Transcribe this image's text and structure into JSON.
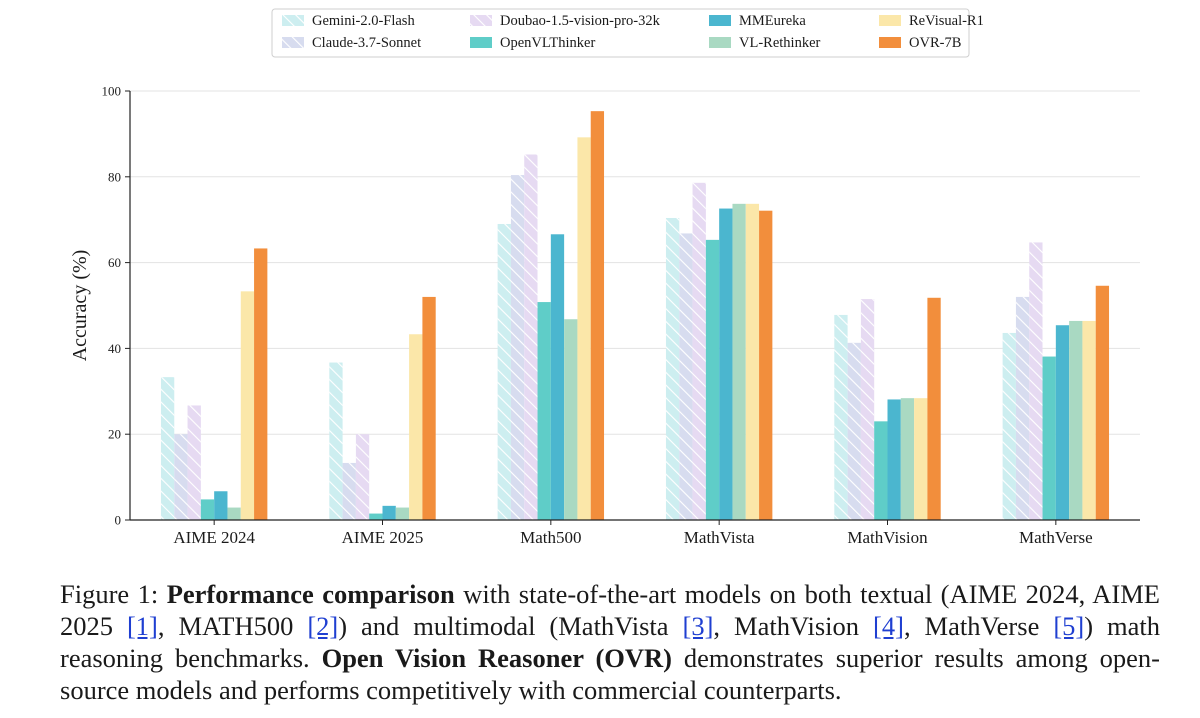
{
  "chart_data": {
    "type": "bar",
    "title": "",
    "xlabel": "",
    "ylabel": "Accuracy (%)",
    "ylim": [
      0,
      100
    ],
    "yticks": [
      0,
      20,
      40,
      60,
      80,
      100
    ],
    "grid": true,
    "legend_position": "top",
    "categories": [
      "AIME 2024",
      "AIME 2025",
      "Math500",
      "MathVista",
      "MathVision",
      "MathVerse"
    ],
    "series": [
      {
        "name": "Gemini-2.0-Flash",
        "color": "#cdeef0",
        "hatch": true,
        "values": [
          33.3,
          36.7,
          69.0,
          70.4,
          47.8,
          43.6
        ]
      },
      {
        "name": "Claude-3.7-Sonnet",
        "color": "#d7dcef",
        "hatch": true,
        "values": [
          20.0,
          13.3,
          80.4,
          66.8,
          41.3,
          52.0
        ]
      },
      {
        "name": "Doubao-1.5-vision-pro-32k",
        "color": "#e6daf2",
        "hatch": true,
        "values": [
          26.7,
          20.0,
          85.2,
          78.6,
          51.5,
          64.7
        ]
      },
      {
        "name": "OpenVLThinker",
        "color": "#5fcdc8",
        "hatch": false,
        "values": [
          4.8,
          1.5,
          50.8,
          65.3,
          23.0,
          38.1
        ]
      },
      {
        "name": "MMEureka",
        "color": "#4bb6cf",
        "hatch": false,
        "values": [
          6.7,
          3.3,
          66.6,
          72.6,
          28.1,
          45.4
        ]
      },
      {
        "name": "VL-Rethinker",
        "color": "#a9d9c2",
        "hatch": false,
        "values": [
          2.9,
          2.9,
          46.8,
          73.7,
          28.4,
          46.4
        ]
      },
      {
        "name": "ReVisual-R1",
        "color": "#fbe7a9",
        "hatch": false,
        "values": [
          53.3,
          43.3,
          89.2,
          73.7,
          28.4,
          46.4
        ]
      },
      {
        "name": "OVR-7B",
        "color": "#f28e3c",
        "hatch": false,
        "values": [
          63.3,
          52.0,
          95.3,
          72.1,
          51.8,
          54.6
        ]
      }
    ]
  },
  "caption": {
    "prefix": "Figure 1: ",
    "bold1": "Performance comparison",
    "t1": " with state-of-the-art models on both textual (AIME 2024, AIME 2025 ",
    "r1": "[1]",
    "t2": ", MATH500 ",
    "r2": "[2]",
    "t3": ") and multimodal (MathVista ",
    "r3": "[3]",
    "t4": ", MathVision ",
    "r4": "[4]",
    "t5": ", MathVerse ",
    "r5": "[5]",
    "t6": ") math reasoning benchmarks. ",
    "bold2": "Open Vision Reasoner (OVR)",
    "t7": " demonstrates superior results among open-source models and performs competitively with commercial counterparts."
  }
}
